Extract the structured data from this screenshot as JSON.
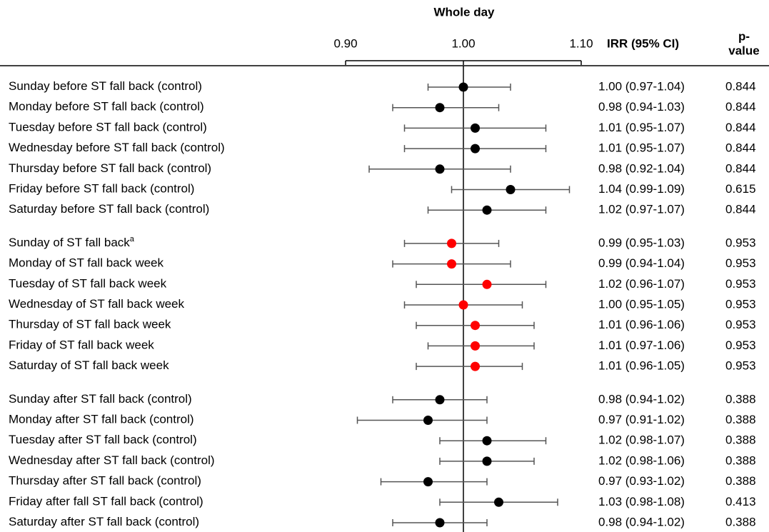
{
  "chart_data": {
    "type": "forest",
    "title": "Whole day",
    "ci_header": "IRR (95% CI)",
    "p_header": [
      "p-",
      "value"
    ],
    "xlim": [
      0.9,
      1.1
    ],
    "xticks": [
      {
        "value": 0.9,
        "label": "0.90"
      },
      {
        "value": 1.0,
        "label": "1.00"
      },
      {
        "value": 1.1,
        "label": "1.10"
      }
    ],
    "reference_line": 1.0,
    "groups": [
      {
        "color": "#000000",
        "categories": [
          "Sunday before ST fall back (control)",
          "Monday before ST fall back (control)",
          "Tuesday before ST fall back (control)",
          "Wednesday before ST fall back (control)",
          "Thursday before ST fall back (control)",
          "Friday before ST fall back (control)",
          "Saturday before ST fall back (control)"
        ],
        "superscripts": [
          null,
          null,
          null,
          null,
          null,
          null,
          null
        ],
        "values": [
          1.0,
          0.98,
          1.01,
          1.01,
          0.98,
          1.04,
          1.02
        ],
        "ci_low": [
          0.97,
          0.94,
          0.95,
          0.95,
          0.92,
          0.99,
          0.97
        ],
        "ci_high": [
          1.04,
          1.03,
          1.07,
          1.07,
          1.04,
          1.09,
          1.07
        ],
        "value_labels": [
          "1.00 (0.97-1.04)",
          "0.98 (0.94-1.03)",
          "1.01 (0.95-1.07)",
          "1.01 (0.95-1.07)",
          "0.98 (0.92-1.04)",
          "1.04 (0.99-1.09)",
          "1.02 (0.97-1.07)"
        ],
        "p_values": [
          0.844,
          0.844,
          0.844,
          0.844,
          0.844,
          0.615,
          0.844
        ]
      },
      {
        "color": "#ff0000",
        "categories": [
          "Sunday of ST fall back",
          "Monday of ST fall back week",
          "Tuesday of ST fall back week",
          "Wednesday of ST fall back week",
          "Thursday of ST fall back week",
          "Friday of ST fall back week",
          "Saturday of ST fall back week"
        ],
        "superscripts": [
          "a",
          null,
          null,
          null,
          null,
          null,
          null
        ],
        "values": [
          0.99,
          0.99,
          1.02,
          1.0,
          1.01,
          1.01,
          1.01
        ],
        "ci_low": [
          0.95,
          0.94,
          0.96,
          0.95,
          0.96,
          0.97,
          0.96
        ],
        "ci_high": [
          1.03,
          1.04,
          1.07,
          1.05,
          1.06,
          1.06,
          1.05
        ],
        "value_labels": [
          "0.99 (0.95-1.03)",
          "0.99 (0.94-1.04)",
          "1.02 (0.96-1.07)",
          "1.00 (0.95-1.05)",
          "1.01 (0.96-1.06)",
          "1.01 (0.97-1.06)",
          "1.01 (0.96-1.05)"
        ],
        "p_values": [
          0.953,
          0.953,
          0.953,
          0.953,
          0.953,
          0.953,
          0.953
        ]
      },
      {
        "color": "#000000",
        "categories": [
          "Sunday after ST fall back (control)",
          "Monday after ST fall back (control)",
          "Tuesday after ST fall back (control)",
          "Wednesday after ST fall back (control)",
          "Thursday after ST fall back (control)",
          "Friday after fall ST fall back (control)",
          "Saturday after ST fall back (control)"
        ],
        "superscripts": [
          null,
          null,
          null,
          null,
          null,
          null,
          null
        ],
        "values": [
          0.98,
          0.97,
          1.02,
          1.02,
          0.97,
          1.03,
          0.98
        ],
        "ci_low": [
          0.94,
          0.91,
          0.98,
          0.98,
          0.93,
          0.98,
          0.94
        ],
        "ci_high": [
          1.02,
          1.02,
          1.07,
          1.06,
          1.02,
          1.08,
          1.02
        ],
        "value_labels": [
          "0.98 (0.94-1.02)",
          "0.97 (0.91-1.02)",
          "1.02 (0.98-1.07)",
          "1.02 (0.98-1.06)",
          "0.97 (0.93-1.02)",
          "1.03 (0.98-1.08)",
          "0.98 (0.94-1.02)"
        ],
        "p_values": [
          0.388,
          0.388,
          0.388,
          0.388,
          0.388,
          0.413,
          0.388
        ]
      }
    ]
  }
}
